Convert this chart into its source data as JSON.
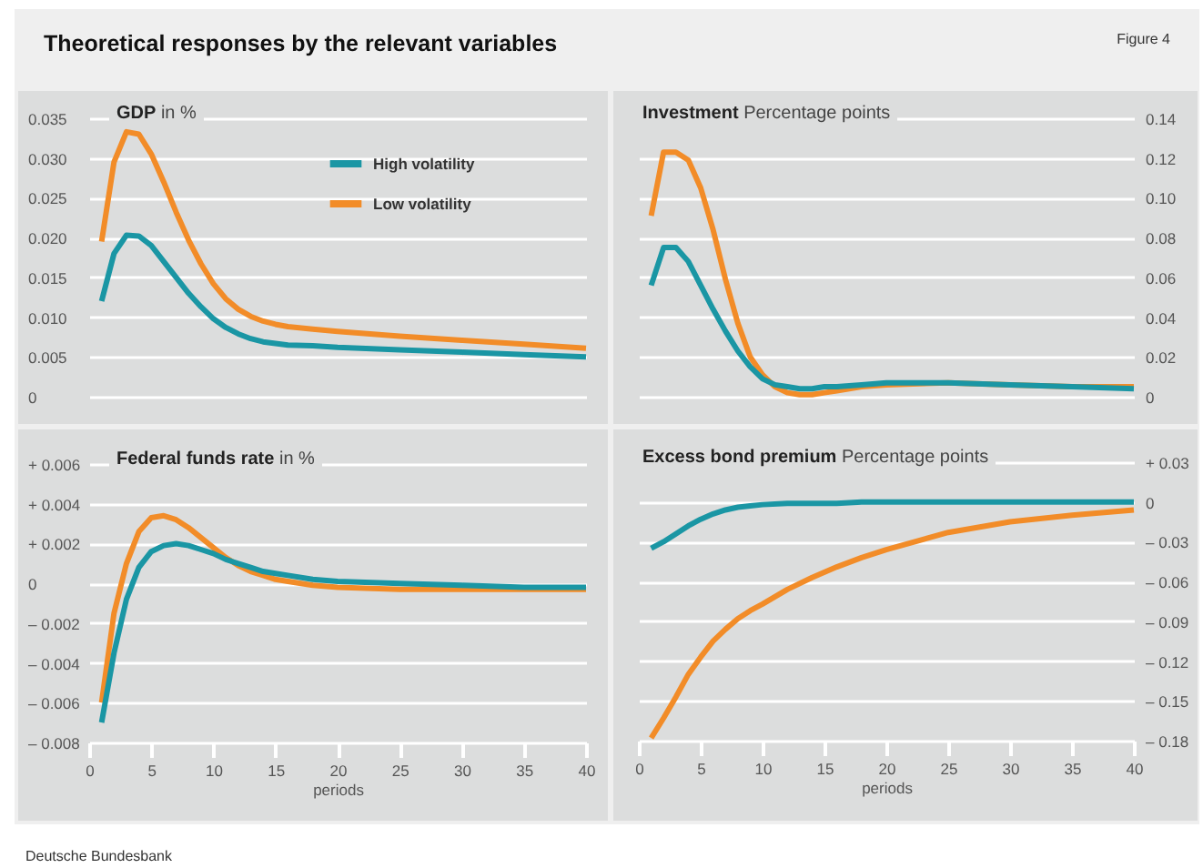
{
  "chart_data": [
    {
      "type": "other",
      "title": "Theoretical responses by the relevant variables",
      "annotations": [
        "Figure 4",
        "Deutsche Bundesbank"
      ]
    },
    {
      "type": "line",
      "title": "GDP",
      "subtitle": "in %",
      "x": [
        1,
        2,
        3,
        4,
        5,
        6,
        7,
        8,
        9,
        10,
        11,
        12,
        13,
        14,
        15,
        16,
        18,
        20,
        25,
        30,
        35,
        40
      ],
      "xlim": [
        0,
        40
      ],
      "xticks": [
        0,
        5,
        10,
        15,
        20,
        25,
        30,
        35,
        40
      ],
      "ylim": [
        0,
        0.035
      ],
      "yticks": [
        {
          "value": 0,
          "label": "0"
        },
        {
          "value": 0.005,
          "label": "0.005"
        },
        {
          "value": 0.01,
          "label": "0.010"
        },
        {
          "value": 0.015,
          "label": "0.015"
        },
        {
          "value": 0.02,
          "label": "0.020"
        },
        {
          "value": 0.025,
          "label": "0.025"
        },
        {
          "value": 0.03,
          "label": "0.030"
        },
        {
          "value": 0.035,
          "label": "0.035"
        }
      ],
      "tick_labels": "y",
      "grid": "y",
      "legend": "top",
      "marker": "none",
      "line_style": "solid",
      "series": [
        {
          "name": "High volatility",
          "color": "#1a96a4",
          "values": [
            0.012,
            0.018,
            0.0203,
            0.0202,
            0.019,
            0.017,
            0.015,
            0.013,
            0.0113,
            0.0098,
            0.0087,
            0.0079,
            0.0073,
            0.0069,
            0.0067,
            0.0065,
            0.0064,
            0.0062,
            0.0059,
            0.0056,
            0.0053,
            0.005
          ]
        },
        {
          "name": "Low volatility",
          "color": "#f28c28",
          "values": [
            0.0195,
            0.0295,
            0.0333,
            0.033,
            0.0305,
            0.027,
            0.0232,
            0.0197,
            0.0167,
            0.0142,
            0.0123,
            0.011,
            0.0101,
            0.0095,
            0.0091,
            0.0088,
            0.0085,
            0.0082,
            0.0076,
            0.0071,
            0.0066,
            0.0061
          ]
        }
      ]
    },
    {
      "type": "line",
      "title": "Investment",
      "subtitle": "Percentage points",
      "x": [
        1,
        2,
        3,
        4,
        5,
        6,
        7,
        8,
        9,
        10,
        11,
        12,
        13,
        14,
        15,
        16,
        18,
        20,
        25,
        30,
        35,
        40
      ],
      "xlim": [
        0,
        40
      ],
      "xticks": [
        0,
        5,
        10,
        15,
        20,
        25,
        30,
        35,
        40
      ],
      "y2lim": [
        0,
        0.14
      ],
      "y2ticks": [
        {
          "value": 0,
          "label": "0"
        },
        {
          "value": 0.02,
          "label": "0.02"
        },
        {
          "value": 0.04,
          "label": "0.04"
        },
        {
          "value": 0.06,
          "label": "0.06"
        },
        {
          "value": 0.08,
          "label": "0.08"
        },
        {
          "value": 0.1,
          "label": "0.10"
        },
        {
          "value": 0.12,
          "label": "0.12"
        },
        {
          "value": 0.14,
          "label": "0.14"
        }
      ],
      "tick_labels": "y",
      "grid": "y",
      "marker": "none",
      "line_style": "solid",
      "series": [
        {
          "color": "#f28c28",
          "axis": "y2",
          "values": [
            0.091,
            0.123,
            0.123,
            0.119,
            0.105,
            0.084,
            0.059,
            0.037,
            0.02,
            0.011,
            0.005,
            0.002,
            0.001,
            0.001,
            0.002,
            0.003,
            0.005,
            0.006,
            0.007,
            0.006,
            0.005,
            0.005
          ]
        },
        {
          "color": "#1a96a4",
          "axis": "y2",
          "values": [
            0.056,
            0.075,
            0.075,
            0.068,
            0.056,
            0.044,
            0.033,
            0.023,
            0.015,
            0.009,
            0.006,
            0.005,
            0.004,
            0.004,
            0.005,
            0.005,
            0.006,
            0.007,
            0.007,
            0.006,
            0.005,
            0.004
          ]
        }
      ]
    },
    {
      "type": "line",
      "title": "Federal funds rate",
      "subtitle": "in %",
      "xlabel": "periods",
      "x": [
        1,
        2,
        3,
        4,
        5,
        6,
        7,
        8,
        9,
        10,
        11,
        12,
        13,
        14,
        15,
        16,
        18,
        20,
        25,
        30,
        35,
        40
      ],
      "xlim": [
        0,
        40
      ],
      "xticks": [
        0,
        5,
        10,
        15,
        20,
        25,
        30,
        35,
        40
      ],
      "ylim": [
        -0.008,
        0.006
      ],
      "yticks": [
        {
          "value": -0.008,
          "label": "– 0.008"
        },
        {
          "value": -0.006,
          "label": "– 0.006"
        },
        {
          "value": -0.004,
          "label": "– 0.004"
        },
        {
          "value": -0.002,
          "label": "– 0.002"
        },
        0,
        {
          "value": 0.002,
          "label": "+ 0.002"
        },
        {
          "value": 0.004,
          "label": "+ 0.004"
        },
        {
          "value": 0.006,
          "label": "+ 0.006"
        }
      ],
      "grid": "y",
      "marker": "none",
      "line_style": "solid",
      "series": [
        {
          "color": "#f28c28",
          "values": [
            -0.006,
            -0.0015,
            0.001,
            0.0026,
            0.0033,
            0.0034,
            0.0032,
            0.0028,
            0.0023,
            0.0018,
            0.0013,
            0.0009,
            0.0006,
            0.0004,
            0.0002,
            0.0001,
            -0.0001,
            -0.0002,
            -0.0003,
            -0.0003,
            -0.0003,
            -0.0003
          ]
        },
        {
          "color": "#1a96a4",
          "values": [
            -0.007,
            -0.0035,
            -0.0008,
            0.0008,
            0.0016,
            0.0019,
            0.002,
            0.0019,
            0.0017,
            0.0015,
            0.0012,
            0.001,
            0.0008,
            0.0006,
            0.0005,
            0.0004,
            0.0002,
            0.0001,
            0,
            -0.0001,
            -0.0002,
            -0.0002
          ]
        }
      ]
    },
    {
      "type": "line",
      "title": "Excess bond premium",
      "subtitle": "Percentage points",
      "xlabel": "periods",
      "x": [
        1,
        2,
        3,
        4,
        5,
        6,
        7,
        8,
        9,
        10,
        12,
        14,
        16,
        18,
        20,
        25,
        30,
        35,
        40
      ],
      "xlim": [
        0,
        40
      ],
      "xticks": [
        0,
        5,
        10,
        15,
        20,
        25,
        30,
        35,
        40
      ],
      "y2lim": [
        -0.18,
        0.03
      ],
      "y2ticks": [
        {
          "value": -0.18,
          "label": "– 0.18"
        },
        {
          "value": -0.15,
          "label": "– 0.15"
        },
        {
          "value": -0.12,
          "label": "– 0.12"
        },
        {
          "value": -0.09,
          "label": "– 0.09"
        },
        {
          "value": -0.06,
          "label": "– 0.06"
        },
        {
          "value": -0.03,
          "label": "– 0.03"
        },
        0,
        {
          "value": 0.03,
          "label": "+ 0.03"
        }
      ],
      "grid": "y",
      "marker": "none",
      "line_style": "solid",
      "series": [
        {
          "color": "#1a96a4",
          "axis": "y2",
          "values": [
            -0.035,
            -0.03,
            -0.024,
            -0.018,
            -0.013,
            -0.009,
            -0.006,
            -0.004,
            -0.003,
            -0.002,
            -0.001,
            -0.001,
            -0.001,
            0,
            0,
            0,
            0,
            0,
            0
          ]
        },
        {
          "color": "#f28c28",
          "axis": "y2",
          "values": [
            -0.178,
            -0.163,
            -0.147,
            -0.13,
            -0.117,
            -0.105,
            -0.096,
            -0.088,
            -0.082,
            -0.077,
            -0.066,
            -0.057,
            -0.049,
            -0.042,
            -0.036,
            -0.023,
            -0.015,
            -0.01,
            -0.006
          ]
        }
      ]
    }
  ]
}
